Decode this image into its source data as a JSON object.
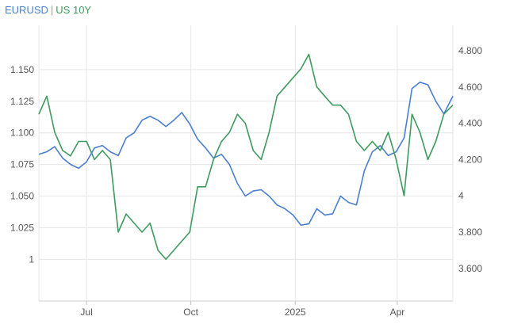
{
  "chart_data": {
    "type": "line",
    "legend": {
      "placement": "top-left",
      "separator": "|"
    },
    "x_ticks": [
      "Jul",
      "Oct",
      "2025",
      "Apr"
    ],
    "x_range": [
      "2024-05-20",
      "2025-05-20"
    ],
    "grid": true,
    "left_axis": {
      "ticks": [
        "1",
        "1.025",
        "1.050",
        "1.075",
        "1.100",
        "1.125",
        "1.150"
      ],
      "range": [
        0.967,
        1.185
      ]
    },
    "right_axis": {
      "ticks": [
        "3.600",
        "3.800",
        "4",
        "4.200",
        "4.400",
        "4.600",
        "4.800"
      ],
      "range": [
        3.42,
        4.94
      ]
    },
    "series": [
      {
        "name": "EURUSD",
        "axis": "left",
        "color": "#4a7fd0",
        "points": [
          [
            "2024-05-20",
            1.083
          ],
          [
            "2024-05-27",
            1.085
          ],
          [
            "2024-06-03",
            1.089
          ],
          [
            "2024-06-10",
            1.08
          ],
          [
            "2024-06-17",
            1.075
          ],
          [
            "2024-06-24",
            1.072
          ],
          [
            "2024-07-01",
            1.077
          ],
          [
            "2024-07-08",
            1.088
          ],
          [
            "2024-07-15",
            1.09
          ],
          [
            "2024-07-22",
            1.085
          ],
          [
            "2024-07-29",
            1.082
          ],
          [
            "2024-08-05",
            1.096
          ],
          [
            "2024-08-12",
            1.1
          ],
          [
            "2024-08-19",
            1.11
          ],
          [
            "2024-08-26",
            1.113
          ],
          [
            "2024-09-02",
            1.11
          ],
          [
            "2024-09-09",
            1.105
          ],
          [
            "2024-09-16",
            1.11
          ],
          [
            "2024-09-23",
            1.116
          ],
          [
            "2024-09-30",
            1.107
          ],
          [
            "2024-10-07",
            1.095
          ],
          [
            "2024-10-14",
            1.088
          ],
          [
            "2024-10-21",
            1.08
          ],
          [
            "2024-10-28",
            1.083
          ],
          [
            "2024-11-04",
            1.075
          ],
          [
            "2024-11-11",
            1.06
          ],
          [
            "2024-11-18",
            1.05
          ],
          [
            "2024-11-25",
            1.054
          ],
          [
            "2024-12-02",
            1.055
          ],
          [
            "2024-12-09",
            1.05
          ],
          [
            "2024-12-16",
            1.043
          ],
          [
            "2024-12-23",
            1.04
          ],
          [
            "2024-12-30",
            1.035
          ],
          [
            "2025-01-06",
            1.027
          ],
          [
            "2025-01-13",
            1.028
          ],
          [
            "2025-01-20",
            1.04
          ],
          [
            "2025-01-27",
            1.035
          ],
          [
            "2025-02-03",
            1.036
          ],
          [
            "2025-02-10",
            1.05
          ],
          [
            "2025-02-17",
            1.045
          ],
          [
            "2025-02-24",
            1.043
          ],
          [
            "2025-03-03",
            1.07
          ],
          [
            "2025-03-10",
            1.085
          ],
          [
            "2025-03-17",
            1.09
          ],
          [
            "2025-03-24",
            1.082
          ],
          [
            "2025-03-31",
            1.085
          ],
          [
            "2025-04-07",
            1.096
          ],
          [
            "2025-04-14",
            1.135
          ],
          [
            "2025-04-21",
            1.14
          ],
          [
            "2025-04-28",
            1.138
          ],
          [
            "2025-05-05",
            1.125
          ],
          [
            "2025-05-12",
            1.115
          ],
          [
            "2025-05-20",
            1.129
          ]
        ]
      },
      {
        "name": "US 10Y",
        "axis": "right",
        "color": "#3e9a5e",
        "points": [
          [
            "2024-05-20",
            4.45
          ],
          [
            "2024-05-27",
            4.55
          ],
          [
            "2024-06-03",
            4.35
          ],
          [
            "2024-06-10",
            4.25
          ],
          [
            "2024-06-17",
            4.22
          ],
          [
            "2024-06-24",
            4.3
          ],
          [
            "2024-07-01",
            4.3
          ],
          [
            "2024-07-08",
            4.2
          ],
          [
            "2024-07-15",
            4.25
          ],
          [
            "2024-07-22",
            4.2
          ],
          [
            "2024-07-29",
            3.8
          ],
          [
            "2024-08-05",
            3.9
          ],
          [
            "2024-08-12",
            3.85
          ],
          [
            "2024-08-19",
            3.8
          ],
          [
            "2024-08-26",
            3.85
          ],
          [
            "2024-09-02",
            3.7
          ],
          [
            "2024-09-09",
            3.65
          ],
          [
            "2024-09-16",
            3.7
          ],
          [
            "2024-09-23",
            3.75
          ],
          [
            "2024-09-30",
            3.8
          ],
          [
            "2024-10-07",
            4.05
          ],
          [
            "2024-10-14",
            4.05
          ],
          [
            "2024-10-21",
            4.2
          ],
          [
            "2024-10-28",
            4.3
          ],
          [
            "2024-11-04",
            4.35
          ],
          [
            "2024-11-11",
            4.45
          ],
          [
            "2024-11-18",
            4.4
          ],
          [
            "2024-11-25",
            4.25
          ],
          [
            "2024-12-02",
            4.2
          ],
          [
            "2024-12-09",
            4.35
          ],
          [
            "2024-12-16",
            4.55
          ],
          [
            "2024-12-23",
            4.6
          ],
          [
            "2025-01-06",
            4.7
          ],
          [
            "2025-01-13",
            4.78
          ],
          [
            "2025-01-20",
            4.6
          ],
          [
            "2025-01-27",
            4.55
          ],
          [
            "2025-02-03",
            4.5
          ],
          [
            "2025-02-10",
            4.5
          ],
          [
            "2025-02-17",
            4.45
          ],
          [
            "2025-02-24",
            4.3
          ],
          [
            "2025-03-03",
            4.25
          ],
          [
            "2025-03-10",
            4.3
          ],
          [
            "2025-03-17",
            4.25
          ],
          [
            "2025-03-24",
            4.35
          ],
          [
            "2025-03-31",
            4.2
          ],
          [
            "2025-04-07",
            4.0
          ],
          [
            "2025-04-14",
            4.45
          ],
          [
            "2025-04-21",
            4.35
          ],
          [
            "2025-04-28",
            4.2
          ],
          [
            "2025-05-05",
            4.3
          ],
          [
            "2025-05-12",
            4.45
          ],
          [
            "2025-05-20",
            4.5
          ]
        ]
      }
    ]
  }
}
